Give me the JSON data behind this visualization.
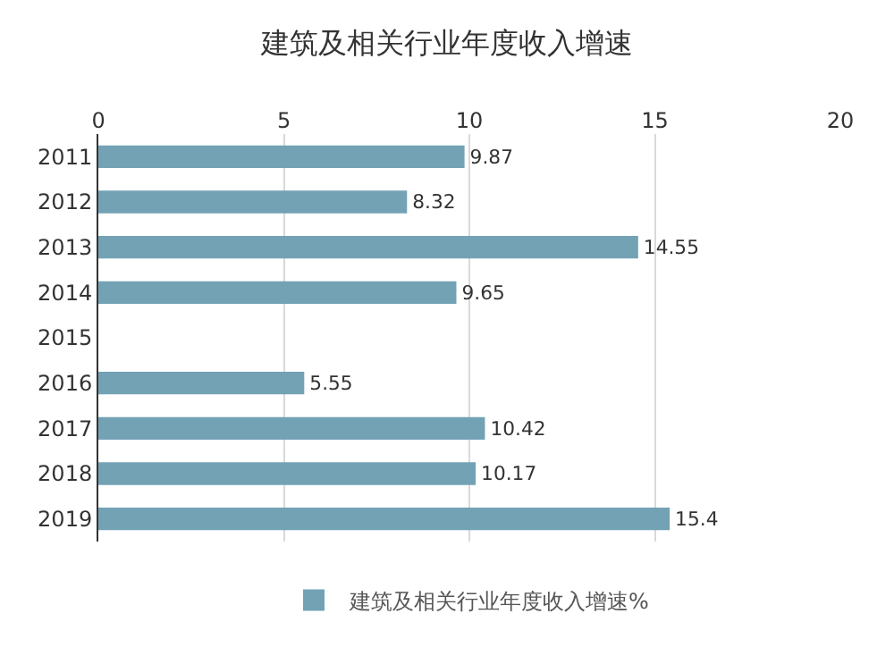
{
  "chart_data": {
    "type": "bar",
    "title": "建筑及相关行业年度收入增速",
    "orientation": "horizontal",
    "categories": [
      "2011",
      "2012",
      "2013",
      "2014",
      "2015",
      "2016",
      "2017",
      "2018",
      "2019"
    ],
    "series": [
      {
        "name": "建筑及相关行业年度收入增速%",
        "color": "#73a2b5",
        "values": [
          9.87,
          8.32,
          14.55,
          9.65,
          null,
          5.55,
          10.42,
          10.17,
          15.4
        ]
      }
    ],
    "xlim": [
      0,
      20
    ],
    "xticks": [
      0,
      5,
      10,
      15,
      20
    ],
    "grid": "x",
    "legend": "bottom",
    "data_labels": true
  }
}
